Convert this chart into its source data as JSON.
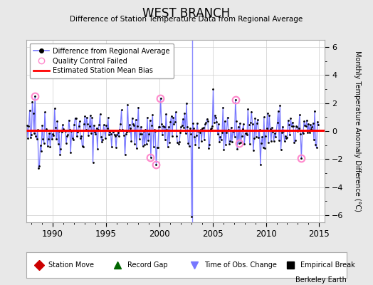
{
  "title": "WEST BRANCH",
  "subtitle": "Difference of Station Temperature Data from Regional Average",
  "ylabel": "Monthly Temperature Anomaly Difference (°C)",
  "xlim": [
    1987.5,
    2015.5
  ],
  "ylim": [
    -6.5,
    6.5
  ],
  "yticks": [
    -6,
    -4,
    -2,
    0,
    2,
    4,
    6
  ],
  "xticks": [
    1990,
    1995,
    2000,
    2005,
    2010,
    2015
  ],
  "mean_bias": 0.05,
  "time_of_obs_change_x": 2003.08,
  "bg_color": "#e8e8e8",
  "plot_bg_color": "#ffffff",
  "line_color": "#7777ff",
  "dot_color": "#000000",
  "bias_color": "#ff0000",
  "qc_fail_color": "#ff88cc",
  "qc_fail_points": [
    [
      1988.33,
      2.5
    ],
    [
      1999.17,
      -1.9
    ],
    [
      1999.67,
      -2.4
    ],
    [
      2000.08,
      2.35
    ],
    [
      2007.17,
      2.25
    ],
    [
      2007.5,
      -0.85
    ],
    [
      2013.33,
      -1.95
    ]
  ],
  "seed": 42,
  "series_start_year": 1987.583,
  "series_end_year": 2014.917,
  "n_points": 328
}
